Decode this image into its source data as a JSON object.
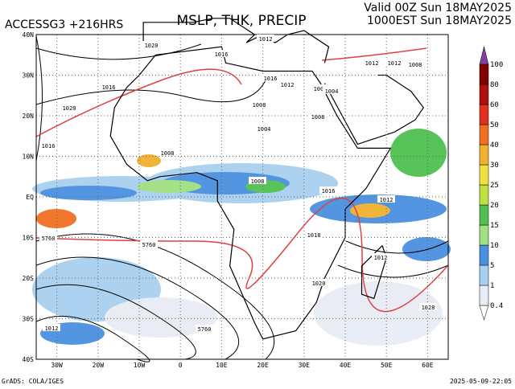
{
  "header": {
    "model": "ACCESSG3 +216HRS",
    "title": "MSLP, THK, PRECIP",
    "valid": "Valid 00Z Sun 18MAY2025",
    "local": "1000EST Sun 18MAY2025"
  },
  "map": {
    "lat_labels": [
      "40N",
      "30N",
      "20N",
      "10N",
      "EQ",
      "10S",
      "20S",
      "30S",
      "40S"
    ],
    "lon_labels": [
      "30W",
      "20W",
      "10W",
      "0",
      "10E",
      "20E",
      "30E",
      "40E",
      "50E",
      "60E"
    ]
  },
  "colorbar": {
    "levels": [
      0.4,
      1,
      5,
      10,
      15,
      20,
      25,
      30,
      40,
      50,
      60,
      80,
      100
    ],
    "colors": [
      "#ffffff",
      "#e8ecf4",
      "#a8d0f0",
      "#4a90e0",
      "#a0e080",
      "#50c050",
      "#c0e040",
      "#f0e040",
      "#f0b030",
      "#f07020",
      "#e03020",
      "#b01010",
      "#800000",
      "#8040a0"
    ]
  },
  "isobar_labels": [
    "1020",
    "1016",
    "1020",
    "1016",
    "1016",
    "1012",
    "1008",
    "1012",
    "1008",
    "1016",
    "1004",
    "1008",
    "1004",
    "1012",
    "1012",
    "1008",
    "1008",
    "1008",
    "1016",
    "1012",
    "1018",
    "1012",
    "1020",
    "1028",
    "1012",
    "5760",
    "5760",
    "5760"
  ],
  "footer": {
    "credit": "GrADS: COLA/IGES",
    "timestamp": "2025-05-09-22:05"
  }
}
